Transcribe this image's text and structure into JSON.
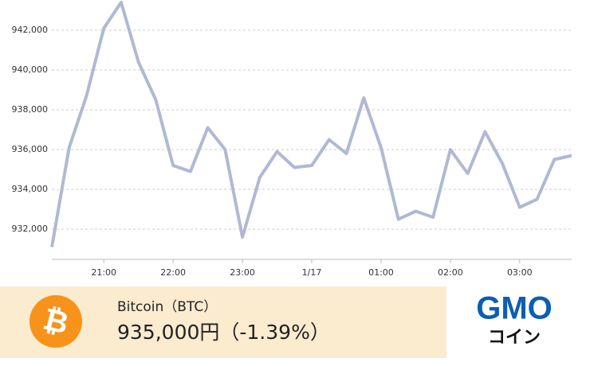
{
  "chart_data": {
    "type": "line",
    "categories": [
      null,
      null,
      null,
      "21:00",
      null,
      null,
      null,
      "22:00",
      null,
      null,
      null,
      "23:00",
      null,
      null,
      null,
      "1/17",
      null,
      null,
      null,
      "01:00",
      null,
      null,
      null,
      "02:00",
      null,
      null,
      null,
      "03:00",
      null,
      null,
      null
    ],
    "series": [
      {
        "color": "#b0b9d3",
        "values": [
          931100,
          936100,
          938700,
          942100,
          943400,
          940400,
          938500,
          935200,
          934900,
          937100,
          936000,
          931600,
          934600,
          935900,
          935100,
          935200,
          936500,
          935800,
          938600,
          936100,
          932500,
          932900,
          932600,
          936000,
          934800,
          936900,
          935300,
          933100,
          933500,
          935500,
          935700
        ]
      }
    ],
    "ylim": [
      930480,
      943520
    ],
    "yticks": [
      {
        "value": 932000,
        "label": "932,000"
      },
      {
        "value": 934000,
        "label": "934,000"
      },
      {
        "value": 936000,
        "label": "936,000"
      },
      {
        "value": 938000,
        "label": "938,000"
      },
      {
        "value": 940000,
        "label": "940,000"
      },
      {
        "value": 942000,
        "label": "942,000"
      }
    ],
    "grid": true
  },
  "banner": {
    "name": "Bitcoin（BTC）",
    "price": "935,000円（-1.39%）",
    "logo": "GMO",
    "logo_sub": "コイン"
  }
}
